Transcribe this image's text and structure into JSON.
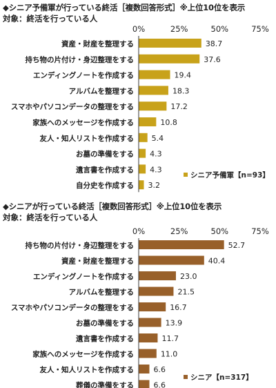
{
  "chart_data": [
    {
      "type": "bar",
      "orientation": "horizontal",
      "title": "◆シニア予備軍が行っている終活［複数回答形式］※上位10位を表示",
      "subtitle": "対象：終活を行っている人",
      "categories": [
        "資産・財産を整理する",
        "持ち物の片付け・身辺整理をする",
        "エンディングノートを作成する",
        "アルバムを整理する",
        "スマホやパソコンデータの整理をする",
        "家族へのメッセージを作成する",
        "友人・知人リストを作成する",
        "お墓の準備をする",
        "遺言書を作成する",
        "自分史を作成する"
      ],
      "series": [
        {
          "name": "シニア予備軍【n=93】",
          "values": [
            38.7,
            37.6,
            19.4,
            18.3,
            17.2,
            10.8,
            5.4,
            4.3,
            4.3,
            3.2
          ],
          "color": "#c8a21a"
        }
      ],
      "value_labels": [
        "38.7",
        "37.6",
        "19.4",
        "18.3",
        "17.2",
        "10.8",
        "5.4",
        "4.3",
        "4.3",
        "3.2"
      ],
      "xlim": [
        0,
        75
      ],
      "ticks": [
        0,
        25,
        50,
        75
      ],
      "tick_labels": [
        "0%",
        "25%",
        "50%",
        "75%"
      ],
      "grid": false,
      "legend": "bottom-right"
    },
    {
      "type": "bar",
      "orientation": "horizontal",
      "title": "◆シニアが行っている終活［複数回答形式］※上位10位を表示",
      "subtitle": "対象：終活を行っている人",
      "categories": [
        "持ち物の片付け・身辺整理をする",
        "資産・財産を整理する",
        "エンディングノートを作成する",
        "アルバムを整理する",
        "スマホやパソコンデータの整理をする",
        "お墓の準備をする",
        "遺言書を作成する",
        "家族へのメッセージを作成する",
        "友人・知人リストを作成する",
        "葬儀の準備をする"
      ],
      "series": [
        {
          "name": "シニア【n=317】",
          "values": [
            52.7,
            40.4,
            23.0,
            21.5,
            16.7,
            13.9,
            11.7,
            11.0,
            6.6,
            6.6
          ],
          "color": "#98602a"
        }
      ],
      "value_labels": [
        "52.7",
        "40.4",
        "23.0",
        "21.5",
        "16.7",
        "13.9",
        "11.7",
        "11.0",
        "6.6",
        "6.6"
      ],
      "xlim": [
        0,
        75
      ],
      "ticks": [
        0,
        25,
        50,
        75
      ],
      "tick_labels": [
        "0%",
        "25%",
        "50%",
        "75%"
      ],
      "grid": false,
      "legend": "bottom-right"
    }
  ]
}
